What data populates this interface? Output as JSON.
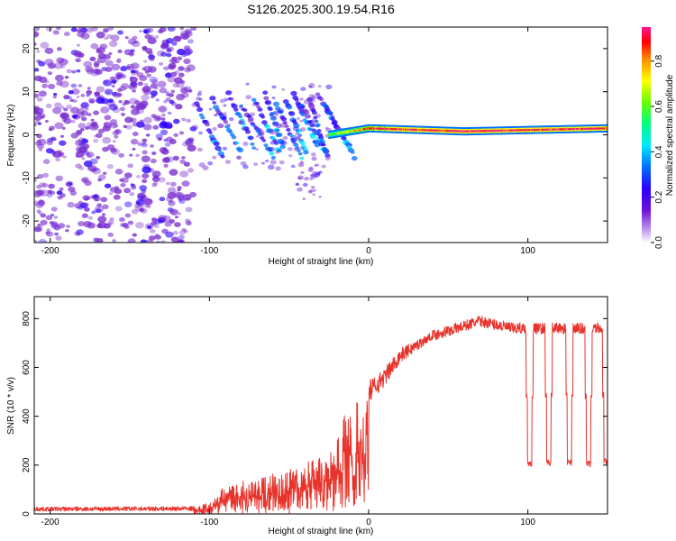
{
  "title": "S126.2025.300.19.54.R16",
  "colors": {
    "snr_line": "#e8332b",
    "frame": "#000000"
  },
  "chart_data": [
    {
      "type": "heatmap",
      "name": "spectrogram",
      "xlabel": "Height of straight line (km)",
      "ylabel": "Frequency (Hz)",
      "xlim": [
        -210,
        150
      ],
      "ylim": [
        -25,
        25
      ],
      "xticks": [
        -200,
        -100,
        0,
        100
      ],
      "yticks": [
        -20,
        -10,
        0,
        10,
        20
      ],
      "colorbar": {
        "label": "Normalized spectral amplitude",
        "range": [
          0,
          0.95
        ],
        "ticks": [
          "0.0",
          "0.2",
          "0.4",
          "0.6",
          "0.8"
        ],
        "colors": [
          "#ffffff",
          "#7b2fd0",
          "#2a00ff",
          "#0070ff",
          "#00e8ff",
          "#00ff80",
          "#66ff00",
          "#ffff00",
          "#ff9000",
          "#ff0000",
          "#ff1493"
        ]
      },
      "carrier": {
        "tone_start_km": -25,
        "frequency_hz": [
          {
            "x": -25,
            "f": 0
          },
          {
            "x": 0,
            "f": 1.5
          },
          {
            "x": 60,
            "f": 0.8
          },
          {
            "x": 150,
            "f": 1.5
          }
        ],
        "noise_region_km": [
          -210,
          -110
        ],
        "multipath_region_km": [
          -110,
          -25
        ]
      }
    },
    {
      "type": "line",
      "name": "snr",
      "xlabel": "Height of straight line (km)",
      "ylabel": "SNR (10 * v/v)",
      "xlim": [
        -210,
        150
      ],
      "ylim": [
        0,
        890
      ],
      "xticks": [
        -200,
        -100,
        0,
        100
      ],
      "yticks": [
        0,
        200,
        400,
        600,
        800
      ],
      "series": [
        {
          "name": "SNR",
          "envelope": [
            {
              "x": -210,
              "y": 20
            },
            {
              "x": -110,
              "y": 22
            },
            {
              "x": -100,
              "y": 40
            },
            {
              "x": -90,
              "y": 110
            },
            {
              "x": -70,
              "y": 150
            },
            {
              "x": -45,
              "y": 190
            },
            {
              "x": -25,
              "y": 230
            },
            {
              "x": -15,
              "y": 420
            },
            {
              "x": 0,
              "y": 500
            },
            {
              "x": 10,
              "y": 560
            },
            {
              "x": 20,
              "y": 650
            },
            {
              "x": 40,
              "y": 730
            },
            {
              "x": 70,
              "y": 790
            },
            {
              "x": 90,
              "y": 760
            },
            {
              "x": 150,
              "y": 760
            }
          ],
          "dropouts": [
            {
              "x": 101,
              "y": 205
            },
            {
              "x": 113,
              "y": 210
            },
            {
              "x": 126,
              "y": 210
            },
            {
              "x": 138,
              "y": 205
            },
            {
              "x": 149,
              "y": 215
            }
          ]
        }
      ]
    }
  ]
}
